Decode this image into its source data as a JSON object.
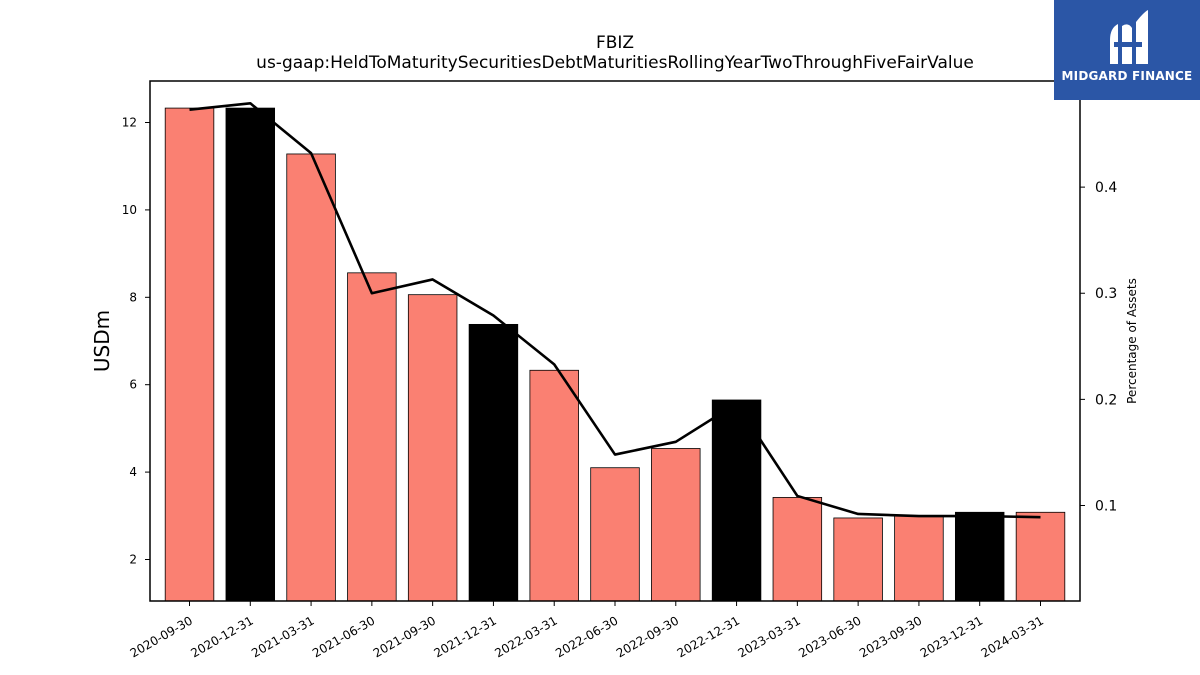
{
  "chart_data": {
    "type": "bar",
    "title": "FBIZ",
    "subtitle": "us-gaap:HeldToMaturitySecuritiesDebtMaturitiesRollingYearTwoThroughFiveFairValue",
    "ylabel": "USDm",
    "y2label": "Percentage of Assets",
    "categories": [
      "2020-09-30",
      "2020-12-31",
      "2021-03-31",
      "2021-06-30",
      "2021-09-30",
      "2021-12-31",
      "2022-03-31",
      "2022-06-30",
      "2022-09-30",
      "2022-12-31",
      "2023-03-31",
      "2023-06-30",
      "2023-09-30",
      "2023-12-31",
      "2024-03-31"
    ],
    "series": [
      {
        "axis": "left",
        "kind": "bar",
        "values": [
          12.33,
          12.33,
          11.28,
          8.56,
          8.06,
          7.38,
          6.33,
          4.1,
          4.54,
          5.65,
          3.42,
          2.95,
          3.0,
          3.08,
          3.08
        ],
        "colors": [
          "#fa8072",
          "#000000",
          "#fa8072",
          "#fa8072",
          "#fa8072",
          "#000000",
          "#fa8072",
          "#fa8072",
          "#fa8072",
          "#000000",
          "#fa8072",
          "#fa8072",
          "#fa8072",
          "#000000",
          "#fa8072"
        ]
      },
      {
        "axis": "right",
        "kind": "line",
        "color": "#000000",
        "values": [
          0.473,
          0.479,
          0.432,
          0.3,
          0.313,
          0.279,
          0.233,
          0.148,
          0.16,
          0.196,
          0.109,
          0.092,
          0.09,
          0.09,
          0.089
        ]
      }
    ],
    "ylim": [
      1.05,
      12.95
    ],
    "yticks": [
      2,
      4,
      6,
      8,
      10,
      12
    ],
    "y2lim": [
      0.01,
      0.5
    ],
    "y2ticks": [
      0.1,
      0.2,
      0.3,
      0.4
    ],
    "y2ticklabels": [
      "0.1",
      "0.2",
      "0.3",
      "0.4"
    ],
    "grid": false
  },
  "logo": {
    "text": "MIDGARD FINANCE",
    "background": "#2b56a6"
  }
}
